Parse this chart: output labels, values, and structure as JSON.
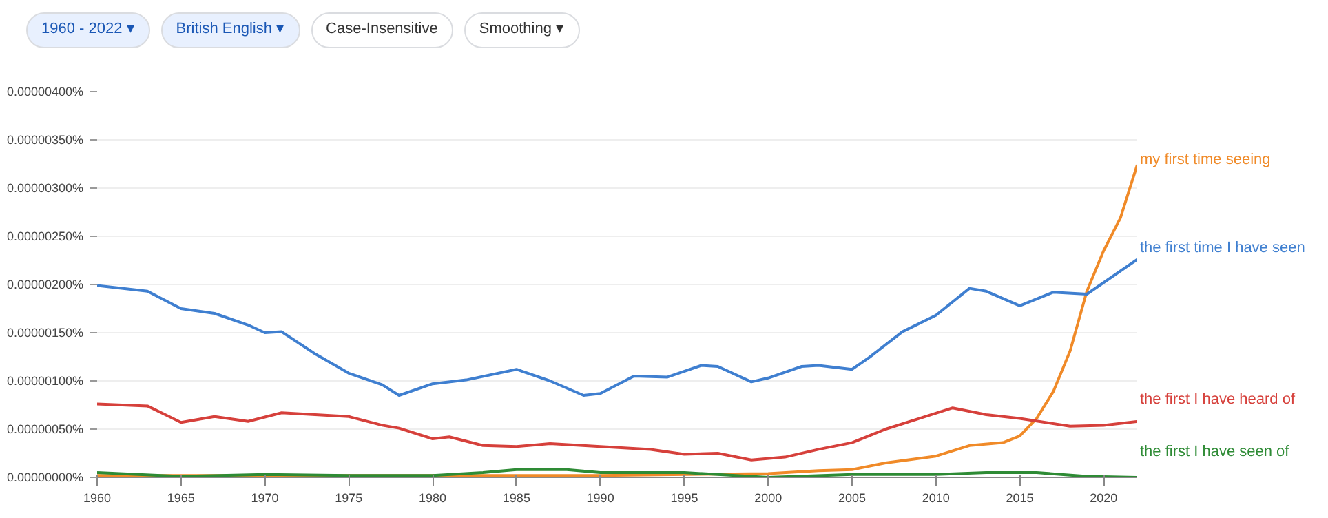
{
  "chart_data": {
    "type": "line",
    "annotations": [
      "1960 - 2022 ▾",
      "British English ▾",
      "Case-Insensitive",
      "Smoothing ▾"
    ],
    "xlim": [
      1960,
      2022
    ],
    "xticks": [
      1960,
      1965,
      1970,
      1975,
      1980,
      1985,
      1990,
      1995,
      2000,
      2005,
      2010,
      2015,
      2020
    ],
    "ylim": [
      0,
      4e-06
    ],
    "yticks": [
      {
        "value": 0,
        "label": "0.00000000%"
      },
      {
        "value": 5e-07,
        "label": "0.00000050%"
      },
      {
        "value": 1e-06,
        "label": "0.00000100%"
      },
      {
        "value": 1.5e-06,
        "label": "0.00000150%"
      },
      {
        "value": 2e-06,
        "label": "0.00000200%"
      },
      {
        "value": 2.5e-06,
        "label": "0.00000250%"
      },
      {
        "value": 3e-06,
        "label": "0.00000300%"
      },
      {
        "value": 3.5e-06,
        "label": "0.00000350%"
      },
      {
        "value": 4e-06,
        "label": "0.00000400%"
      }
    ],
    "grid": "y",
    "legend": false,
    "line_style": "solid",
    "series": [
      {
        "name": "my first time seeing",
        "color": "#f08a28",
        "x": [
          1960,
          1970,
          1980,
          1990,
          2000,
          2003,
          2005,
          2007,
          2010,
          2012,
          2014,
          2015,
          2016,
          2017,
          2018,
          2019,
          2020,
          2021,
          2022
        ],
        "values": [
          2e-08,
          2e-08,
          2e-08,
          2e-08,
          4e-08,
          7e-08,
          8e-08,
          1.5e-07,
          2.2e-07,
          3.3e-07,
          3.6e-07,
          4.3e-07,
          6.1e-07,
          8.9e-07,
          1.31e-06,
          1.93e-06,
          2.35e-06,
          2.69e-06,
          3.24e-06
        ]
      },
      {
        "name": "the first time I have seen",
        "color": "#3f7fd0",
        "x": [
          1960,
          1963,
          1965,
          1967,
          1969,
          1970,
          1971,
          1973,
          1975,
          1977,
          1978,
          1980,
          1982,
          1985,
          1987,
          1989,
          1990,
          1992,
          1994,
          1996,
          1997,
          1999,
          2000,
          2002,
          2003,
          2005,
          2006,
          2008,
          2010,
          2012,
          2013,
          2015,
          2017,
          2019,
          2022
        ],
        "values": [
          1.99e-06,
          1.93e-06,
          1.75e-06,
          1.7e-06,
          1.58e-06,
          1.5e-06,
          1.51e-06,
          1.28e-06,
          1.08e-06,
          9.6e-07,
          8.5e-07,
          9.7e-07,
          1.01e-06,
          1.12e-06,
          1e-06,
          8.5e-07,
          8.7e-07,
          1.05e-06,
          1.04e-06,
          1.16e-06,
          1.15e-06,
          9.9e-07,
          1.03e-06,
          1.15e-06,
          1.16e-06,
          1.12e-06,
          1.24e-06,
          1.51e-06,
          1.68e-06,
          1.96e-06,
          1.93e-06,
          1.78e-06,
          1.92e-06,
          1.9e-06,
          2.26e-06
        ]
      },
      {
        "name": "the first I have heard of",
        "color": "#d6403b",
        "x": [
          1960,
          1963,
          1965,
          1967,
          1969,
          1971,
          1973,
          1975,
          1977,
          1978,
          1980,
          1981,
          1983,
          1985,
          1987,
          1990,
          1993,
          1995,
          1997,
          1999,
          2001,
          2003,
          2005,
          2007,
          2009,
          2011,
          2013,
          2015,
          2018,
          2020,
          2022
        ],
        "values": [
          7.6e-07,
          7.4e-07,
          5.7e-07,
          6.3e-07,
          5.8e-07,
          6.7e-07,
          6.5e-07,
          6.3e-07,
          5.4e-07,
          5.1e-07,
          4e-07,
          4.2e-07,
          3.3e-07,
          3.2e-07,
          3.5e-07,
          3.2e-07,
          2.9e-07,
          2.4e-07,
          2.5e-07,
          1.8e-07,
          2.1e-07,
          2.9e-07,
          3.6e-07,
          5e-07,
          6.1e-07,
          7.2e-07,
          6.5e-07,
          6.1e-07,
          5.3e-07,
          5.4e-07,
          5.8e-07
        ]
      },
      {
        "name": "the first I have seen of",
        "color": "#2e8b35",
        "x": [
          1960,
          1965,
          1970,
          1975,
          1980,
          1983,
          1985,
          1988,
          1990,
          1993,
          1995,
          2000,
          2005,
          2010,
          2013,
          2016,
          2019,
          2022
        ],
        "values": [
          5e-08,
          1e-08,
          3e-08,
          2e-08,
          2e-08,
          5e-08,
          8e-08,
          8e-08,
          5e-08,
          5e-08,
          5e-08,
          0,
          3e-08,
          3e-08,
          5e-08,
          5e-08,
          1e-08,
          0
        ]
      }
    ]
  }
}
